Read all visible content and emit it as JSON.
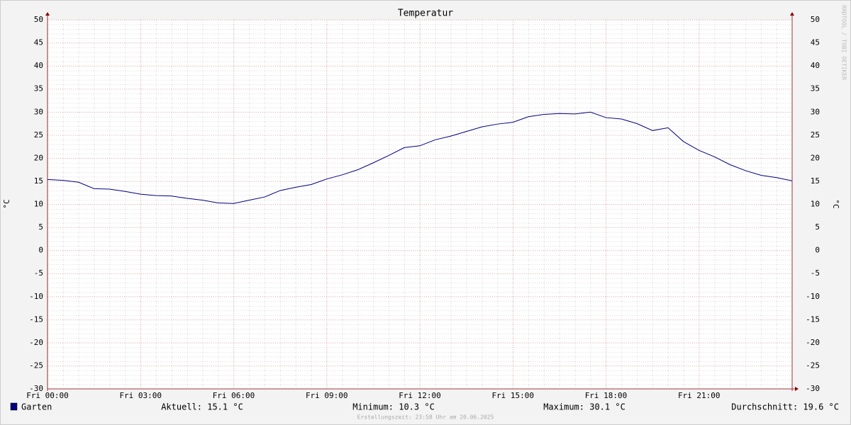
{
  "chart_data": {
    "type": "line",
    "title": "Temperatur",
    "y_label": "°C",
    "y2_label": "°C",
    "watermark": "RRDTOOL / TOBI OETIKER",
    "x": [
      0,
      0.5,
      1,
      1.5,
      2,
      2.5,
      3,
      3.5,
      4,
      4.5,
      5,
      5.5,
      6,
      6.5,
      7,
      7.5,
      8,
      8.5,
      9,
      9.5,
      10,
      10.5,
      11,
      11.5,
      12,
      12.5,
      13,
      13.5,
      14,
      14.5,
      15,
      15.5,
      16,
      16.5,
      17,
      17.5,
      18,
      18.5,
      19,
      19.5,
      20,
      20.5,
      21,
      21.5,
      22,
      22.5,
      23,
      23.5,
      24
    ],
    "series": [
      {
        "name": "Garten",
        "color": "#000080",
        "values": [
          15.4,
          15.2,
          14.8,
          13.4,
          13.3,
          12.8,
          12.2,
          11.9,
          11.8,
          11.3,
          10.9,
          10.3,
          10.2,
          10.9,
          11.6,
          13.0,
          13.7,
          14.3,
          15.5,
          16.4,
          17.5,
          19.0,
          20.6,
          22.3,
          22.7,
          24.0,
          24.8,
          25.8,
          26.8,
          27.4,
          27.8,
          29.0,
          29.5,
          29.7,
          29.6,
          30.0,
          28.8,
          28.5,
          27.5,
          26.0,
          26.6,
          23.6,
          21.7,
          20.3,
          18.6,
          17.3,
          16.3,
          15.8,
          15.1
        ]
      }
    ],
    "xlim": [
      0,
      24
    ],
    "xticks": [
      {
        "value": 0,
        "label": "Fri 00:00"
      },
      {
        "value": 3,
        "label": "Fri 03:00"
      },
      {
        "value": 6,
        "label": "Fri 06:00"
      },
      {
        "value": 9,
        "label": "Fri 09:00"
      },
      {
        "value": 12,
        "label": "Fri 12:00"
      },
      {
        "value": 15,
        "label": "Fri 15:00"
      },
      {
        "value": 18,
        "label": "Fri 18:00"
      },
      {
        "value": 21,
        "label": "Fri 21:00"
      }
    ],
    "ylim": [
      -30,
      50
    ],
    "yticks": [
      -30,
      -25,
      -20,
      -15,
      -10,
      -5,
      0,
      5,
      10,
      15,
      20,
      25,
      30,
      35,
      40,
      45,
      50
    ],
    "grid": true,
    "stats": [
      "Aktuell: 15.1 °C",
      "Minimum: 10.3 °C",
      "Maximum: 30.1 °C",
      "Durchschnitt: 19.6 °C"
    ],
    "footer": "Erstellungszeit: 23:58 Uhr am 20.06.2025"
  }
}
